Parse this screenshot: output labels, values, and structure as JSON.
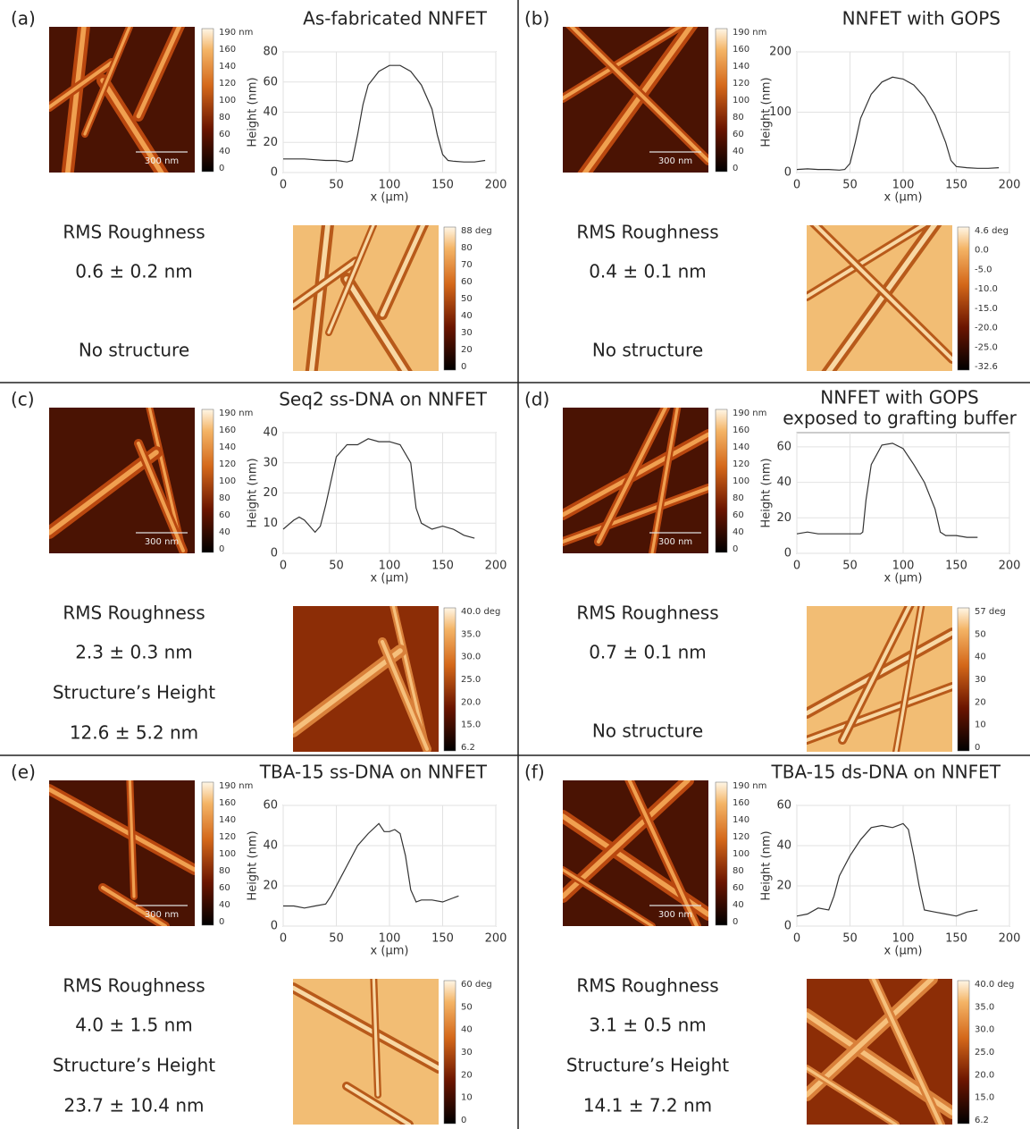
{
  "chart_data": [
    {
      "type": "line",
      "title": [
        "As-fabricated NNFET"
      ],
      "xlabel": "x (µm)",
      "ylabel": "Height (nm)",
      "color": "#333333",
      "grid": true,
      "x": [
        0,
        10,
        20,
        30,
        40,
        50,
        60,
        65,
        70,
        75,
        80,
        90,
        100,
        110,
        120,
        130,
        140,
        145,
        150,
        155,
        160,
        170,
        180,
        190
      ],
      "values": [
        9,
        9,
        9,
        8.5,
        8,
        8,
        7,
        8,
        25,
        45,
        58,
        67,
        71,
        71,
        67,
        58,
        42,
        25,
        12,
        8,
        7.5,
        7,
        7,
        8
      ],
      "xlim": [
        0,
        200
      ],
      "xticks": [
        0,
        50,
        100,
        150,
        200
      ],
      "ylim": [
        0,
        80
      ],
      "yticks": [
        0,
        20,
        40,
        60,
        80
      ]
    },
    {
      "type": "line",
      "title": [
        "NNFET with GOPS"
      ],
      "xlabel": "x (µm)",
      "ylabel": "Height (nm)",
      "color": "#333333",
      "grid": true,
      "x": [
        0,
        10,
        20,
        30,
        40,
        45,
        50,
        55,
        60,
        70,
        80,
        90,
        100,
        110,
        120,
        130,
        140,
        145,
        150,
        160,
        170,
        180,
        190
      ],
      "values": [
        5,
        6,
        5,
        5,
        4,
        5,
        15,
        50,
        90,
        130,
        150,
        158,
        155,
        145,
        125,
        95,
        50,
        20,
        10,
        8,
        7,
        7,
        8
      ],
      "xlim": [
        0,
        200
      ],
      "xticks": [
        0,
        50,
        100,
        150,
        200
      ],
      "ylim": [
        0,
        200
      ],
      "yticks": [
        0,
        100,
        200
      ]
    },
    {
      "type": "line",
      "title": [
        "Seq2 ss-DNA on NNFET"
      ],
      "xlabel": "x (µm)",
      "ylabel": "Height (nm)",
      "color": "#333333",
      "grid": true,
      "x": [
        0,
        10,
        15,
        20,
        30,
        35,
        40,
        50,
        60,
        70,
        80,
        90,
        100,
        110,
        120,
        125,
        130,
        140,
        150,
        160,
        170,
        180
      ],
      "values": [
        8,
        11,
        12,
        11,
        7,
        9,
        16,
        32,
        36,
        36,
        38,
        37,
        37,
        36,
        30,
        15,
        10,
        8,
        9,
        8,
        6,
        5
      ],
      "xlim": [
        0,
        200
      ],
      "xticks": [
        0,
        50,
        100,
        150,
        200
      ],
      "ylim": [
        0,
        40
      ],
      "yticks": [
        0,
        10,
        20,
        30,
        40
      ]
    },
    {
      "type": "line",
      "title": [
        "NNFET with GOPS",
        "exposed to grafting buffer"
      ],
      "xlabel": "x (µm)",
      "ylabel": "Height (nm)",
      "color": "#333333",
      "grid": true,
      "x": [
        0,
        10,
        20,
        30,
        40,
        50,
        60,
        62,
        65,
        70,
        80,
        90,
        100,
        110,
        120,
        130,
        135,
        140,
        150,
        160,
        170
      ],
      "values": [
        11,
        12,
        11,
        11,
        11,
        11,
        11,
        12,
        30,
        50,
        61,
        62,
        59,
        50,
        40,
        25,
        12,
        10,
        10,
        9,
        9
      ],
      "xlim": [
        0,
        200
      ],
      "xticks": [
        0,
        50,
        100,
        150,
        200
      ],
      "ylim": [
        0,
        68
      ],
      "yticks": [
        0,
        20,
        40,
        60
      ]
    },
    {
      "type": "line",
      "title": [
        "TBA-15 ss-DNA on NNFET"
      ],
      "xlabel": "x (µm)",
      "ylabel": "Height (nm)",
      "color": "#333333",
      "grid": true,
      "x": [
        0,
        10,
        20,
        30,
        40,
        45,
        50,
        55,
        60,
        70,
        80,
        90,
        95,
        100,
        105,
        110,
        115,
        120,
        125,
        130,
        140,
        150,
        160,
        165
      ],
      "values": [
        10,
        10,
        9,
        10,
        11,
        15,
        20,
        25,
        30,
        40,
        46,
        51,
        47,
        47,
        48,
        46,
        35,
        18,
        12,
        13,
        13,
        12,
        14,
        15
      ],
      "xlim": [
        0,
        200
      ],
      "xticks": [
        0,
        50,
        100,
        150,
        200
      ],
      "ylim": [
        0,
        60
      ],
      "yticks": [
        0,
        20,
        40,
        60
      ]
    },
    {
      "type": "line",
      "title": [
        "TBA-15 ds-DNA on NNFET"
      ],
      "xlabel": "x (µm)",
      "ylabel": "Height (nm)",
      "color": "#333333",
      "grid": true,
      "x": [
        0,
        10,
        20,
        30,
        35,
        40,
        50,
        60,
        70,
        80,
        90,
        100,
        105,
        110,
        115,
        120,
        130,
        140,
        150,
        160,
        170
      ],
      "values": [
        5,
        6,
        9,
        8,
        15,
        25,
        35,
        43,
        49,
        50,
        49,
        51,
        48,
        35,
        20,
        8,
        7,
        6,
        5,
        7,
        8
      ],
      "xlim": [
        0,
        200
      ],
      "xticks": [
        0,
        50,
        100,
        150,
        200
      ],
      "ylim": [
        0,
        60
      ],
      "yticks": [
        0,
        20,
        40,
        60
      ]
    }
  ],
  "panels": [
    {
      "label": "(a)",
      "scale_bar": "300 nm",
      "stats": [
        "RMS Roughness",
        "0.6 ± 0.2 nm",
        "No structure"
      ],
      "height_colorbar": [
        "190 nm",
        "160",
        "140",
        "120",
        "100",
        "80",
        "60",
        "40",
        "0"
      ],
      "phase_colorbar": [
        "88 deg",
        "80",
        "70",
        "60",
        "50",
        "40",
        "30",
        "20",
        "0"
      ]
    },
    {
      "label": "(b)",
      "scale_bar": "300 nm",
      "stats": [
        "RMS Roughness",
        "0.4 ± 0.1 nm",
        "No structure"
      ],
      "height_colorbar": [
        "190 nm",
        "160",
        "140",
        "120",
        "100",
        "80",
        "60",
        "40",
        "0"
      ],
      "phase_colorbar": [
        "4.6 deg",
        "0.0",
        "-5.0",
        "-10.0",
        "-15.0",
        "-20.0",
        "-25.0",
        "-32.6"
      ]
    },
    {
      "label": "(c)",
      "scale_bar": "300 nm",
      "stats": [
        "RMS Roughness",
        "2.3 ± 0.3 nm",
        "Structure’s Height",
        "12.6 ± 5.2 nm"
      ],
      "height_colorbar": [
        "190 nm",
        "160",
        "140",
        "120",
        "100",
        "80",
        "60",
        "40",
        "0"
      ],
      "phase_colorbar": [
        "40.0 deg",
        "35.0",
        "30.0",
        "25.0",
        "20.0",
        "15.0",
        "6.2"
      ]
    },
    {
      "label": "(d)",
      "scale_bar": "300 nm",
      "stats": [
        "RMS Roughness",
        "0.7 ± 0.1 nm",
        "No structure"
      ],
      "height_colorbar": [
        "190 nm",
        "160",
        "140",
        "120",
        "100",
        "80",
        "60",
        "40",
        "0"
      ],
      "phase_colorbar": [
        "57 deg",
        "50",
        "40",
        "30",
        "20",
        "10",
        "0"
      ]
    },
    {
      "label": "(e)",
      "scale_bar": "300 nm",
      "stats": [
        "RMS Roughness",
        "4.0 ± 1.5 nm",
        "Structure’s Height",
        "23.7 ± 10.4 nm"
      ],
      "height_colorbar": [
        "190 nm",
        "160",
        "140",
        "120",
        "100",
        "80",
        "60",
        "40",
        "0"
      ],
      "phase_colorbar": [
        "60 deg",
        "50",
        "40",
        "30",
        "20",
        "10",
        "0"
      ]
    },
    {
      "label": "(f)",
      "scale_bar": "300 nm",
      "stats": [
        "RMS Roughness",
        "3.1 ± 0.5 nm",
        "Structure’s Height",
        "14.1 ± 7.2 nm"
      ],
      "height_colorbar": [
        "190 nm",
        "160",
        "140",
        "120",
        "100",
        "80",
        "60",
        "40",
        "0"
      ],
      "phase_colorbar": [
        "40.0 deg",
        "35.0",
        "30.0",
        "25.0",
        "20.0",
        "15.0",
        "6.2"
      ]
    }
  ]
}
